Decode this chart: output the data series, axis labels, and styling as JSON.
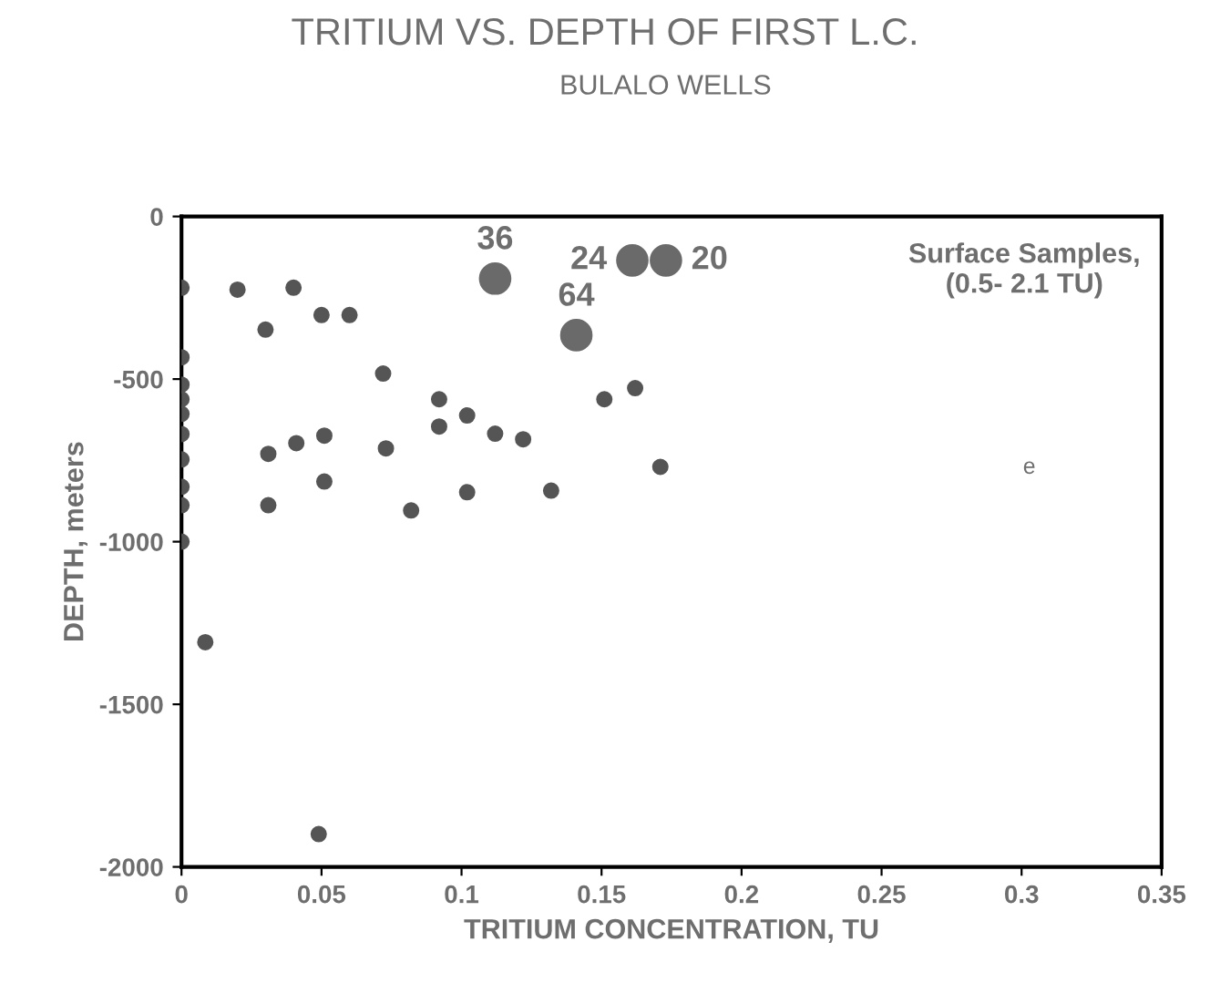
{
  "chart_data": {
    "type": "scatter",
    "title": "TRITIUM VS. DEPTH OF FIRST L.C.",
    "subtitle": "BULALO WELLS",
    "xlabel": "TRITIUM CONCENTRATION, TU",
    "ylabel": "DEPTH, meters",
    "series": [
      {
        "color": "#555555",
        "x": [
          0,
          0.02,
          0.04,
          0.03,
          0.05,
          0.06,
          0.072,
          0.092,
          0.092,
          0.102,
          0.112,
          0.122,
          0.132,
          0.102,
          0.082,
          0.073,
          0.051,
          0.051,
          0.041,
          0.031,
          0.031,
          0,
          0,
          0,
          0,
          0,
          0,
          0,
          0,
          0,
          0.151,
          0.162,
          0.171,
          0.0085,
          0.049
        ],
        "values": [
          -219,
          -225,
          -219,
          -348,
          -303,
          -303,
          -483,
          -562,
          -646,
          -612,
          -668,
          -685,
          -843,
          -848,
          -904,
          -713,
          -674,
          -815,
          -697,
          -730,
          -888,
          -433,
          -517,
          -562,
          -607,
          -669,
          -747,
          -831,
          -888,
          -1000,
          -562,
          -528,
          -770,
          -1309,
          -1899
        ]
      },
      {
        "color": "#6a6a6a",
        "x": [
          0.112,
          0.141,
          0.161,
          0.173
        ],
        "values": [
          -191,
          -365,
          -135,
          -135
        ]
      }
    ],
    "xlim": [
      0,
      0.35
    ],
    "ylim": [
      -2000,
      0
    ],
    "xticks": [
      0,
      0.05,
      0.1,
      0.15,
      0.2,
      0.25,
      0.3,
      0.35
    ],
    "yticks": [
      0,
      -500,
      -1000,
      -1500,
      -2000
    ],
    "annotations": [
      "Surface Samples,\n(0.5- 2.1 TU)",
      "e",
      {
        "text": "36",
        "x": 0.112,
        "y": -191
      },
      {
        "text": "64",
        "x": 0.141,
        "y": -365
      },
      {
        "text": "24",
        "x": 0.161,
        "y": -135
      },
      {
        "text": "20",
        "x": 0.173,
        "y": -135
      }
    ],
    "marker": "circle",
    "grid": false,
    "legend": false
  }
}
